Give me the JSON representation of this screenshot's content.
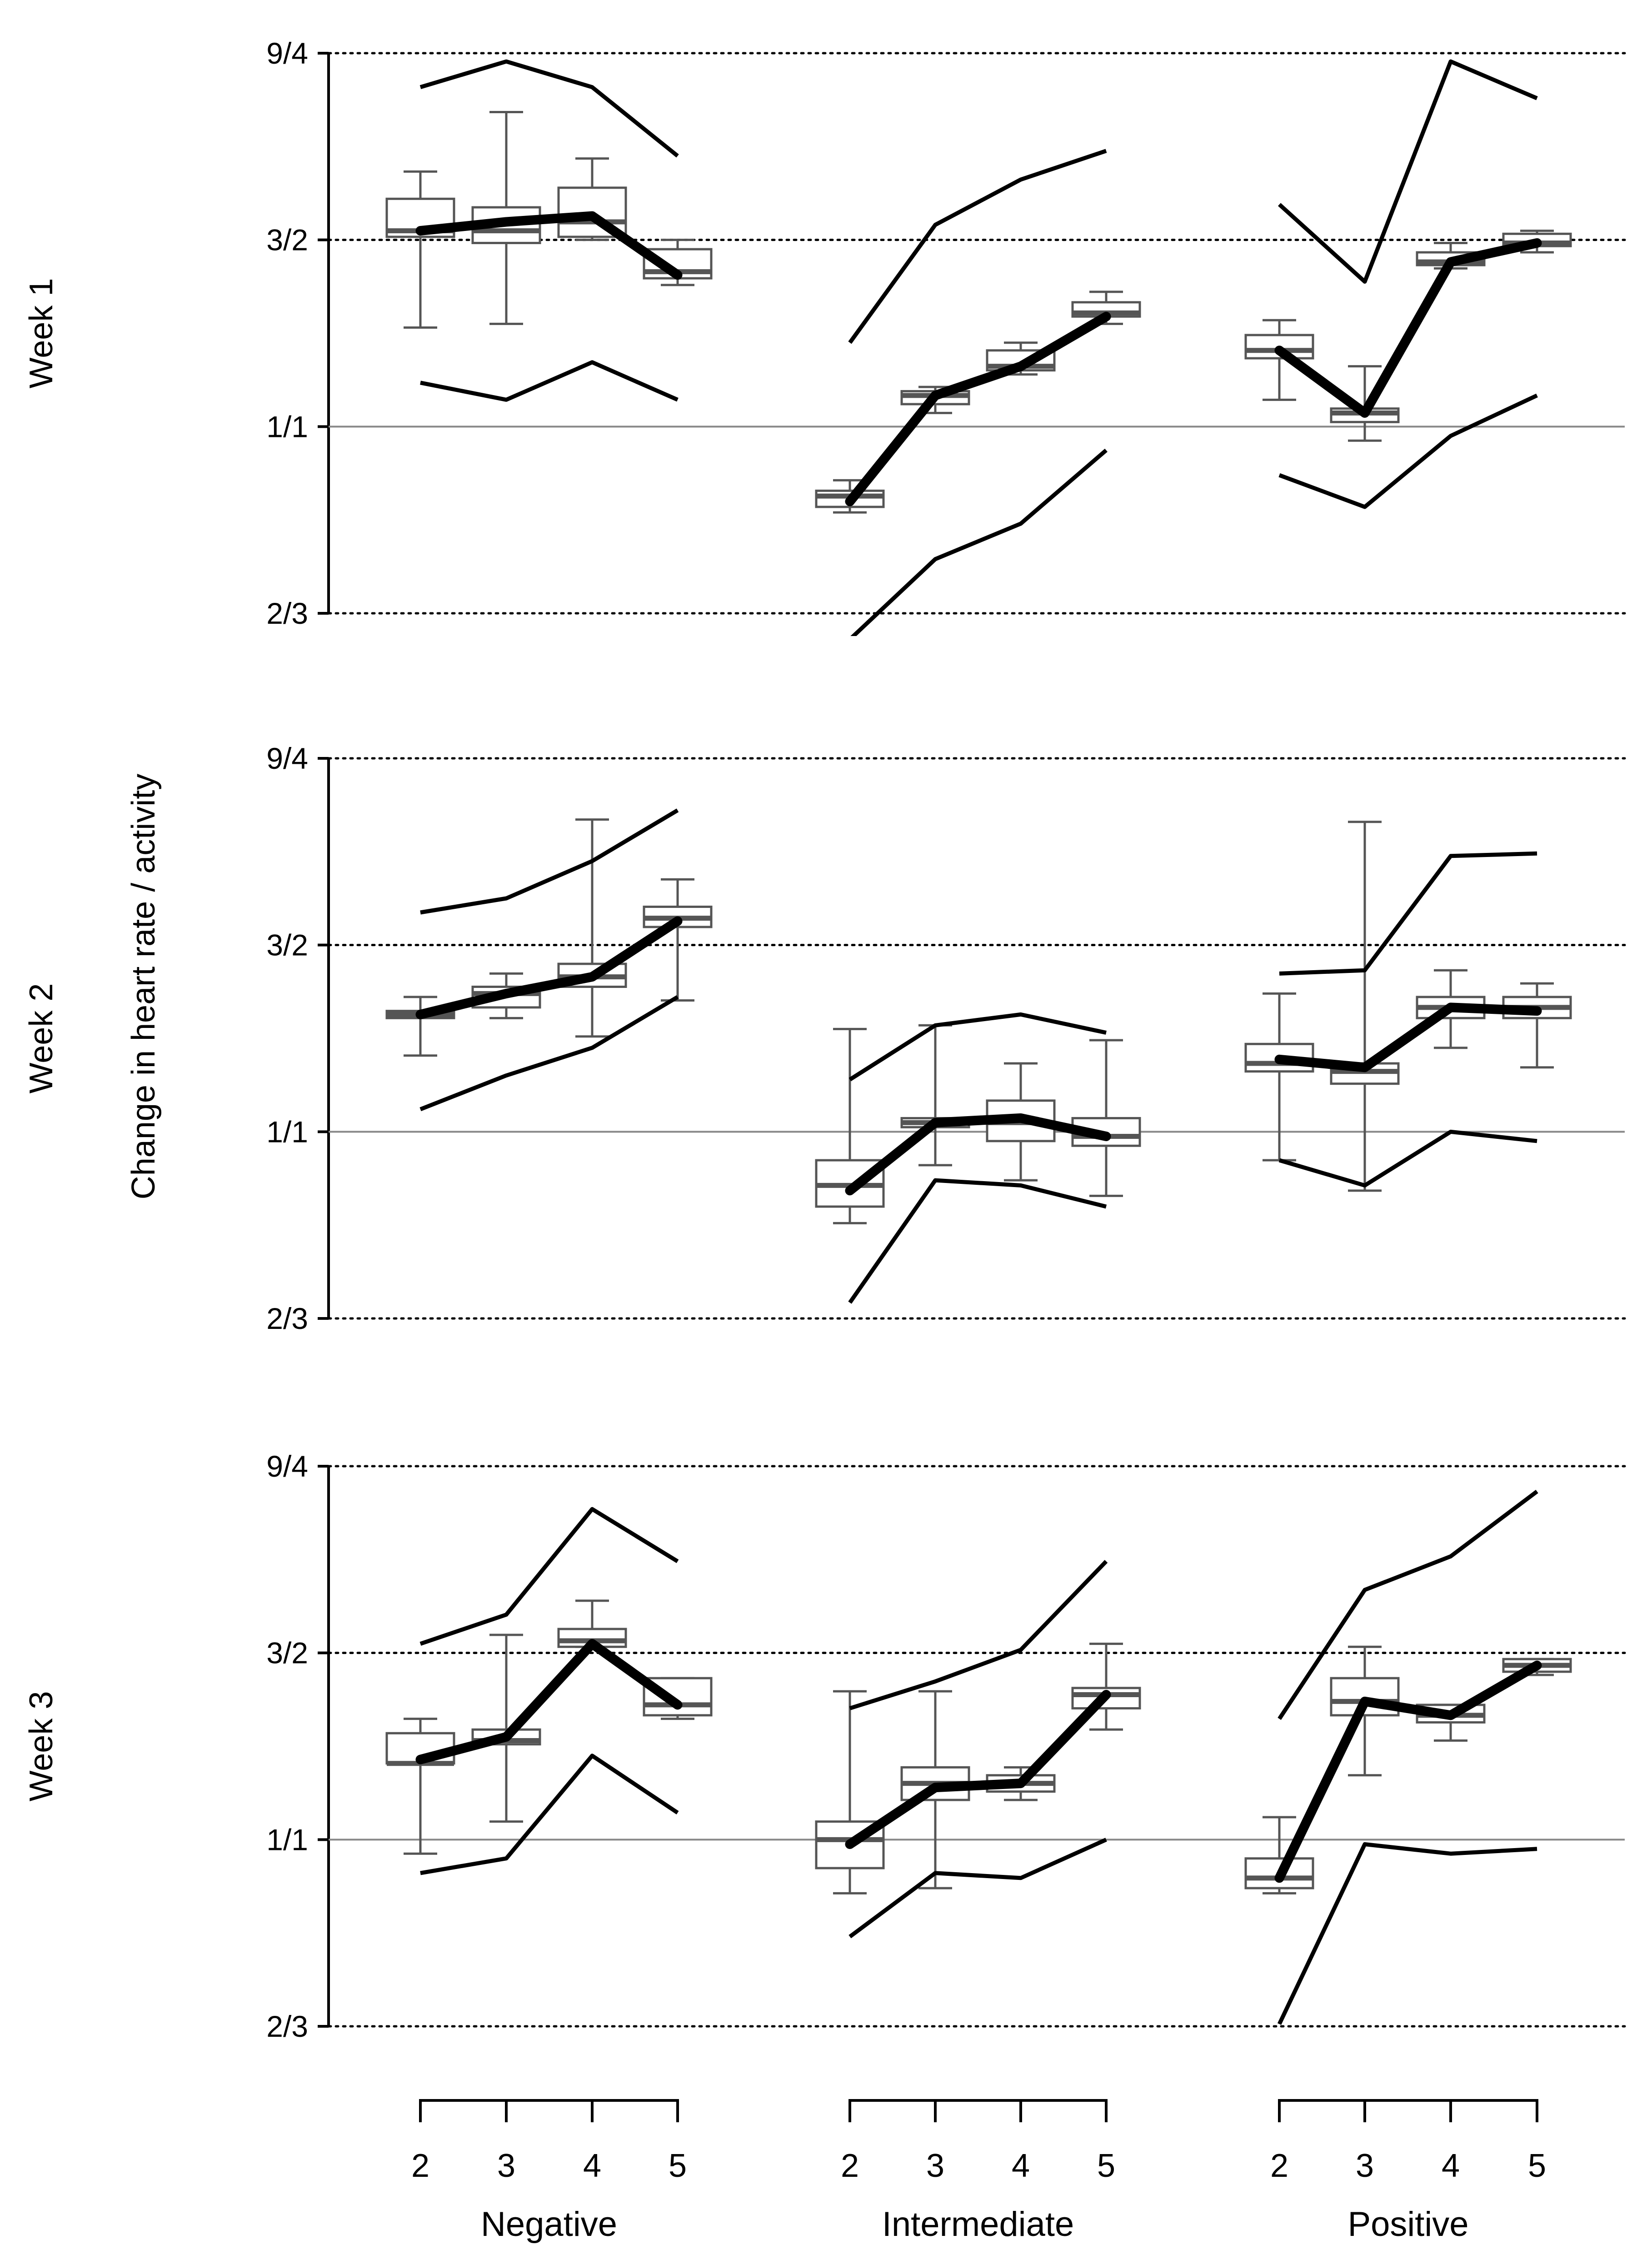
{
  "chart_data": {
    "type": "boxplot-with-lines",
    "ylabel": "Change in heart rate / activity",
    "yscale": "log",
    "yticks": [
      {
        "label": "9/4",
        "value": 2.25,
        "style": "dotted"
      },
      {
        "label": "3/2",
        "value": 1.5,
        "style": "dotted"
      },
      {
        "label": "1/1",
        "value": 1.0,
        "style": "solid"
      },
      {
        "label": "2/3",
        "value": 0.6667,
        "style": "dotted"
      }
    ],
    "ylim": [
      0.6667,
      2.25
    ],
    "group_labels": [
      "Negative",
      "Intermediate",
      "Positive"
    ],
    "categories": [
      "2",
      "3",
      "4",
      "5"
    ],
    "rows": [
      {
        "label": "Week 1",
        "groups": [
          {
            "name": "Negative",
            "median_line": [
              1.53,
              1.56,
              1.58,
              1.39
            ],
            "upper_line": [
              2.09,
              2.21,
              2.09,
              1.8
            ],
            "lower_line": [
              1.1,
              1.06,
              1.15,
              1.06
            ],
            "boxes": [
              {
                "q1": 1.51,
                "median": 1.53,
                "q3": 1.64,
                "whisker_low": 1.24,
                "whisker_high": 1.74
              },
              {
                "q1": 1.49,
                "median": 1.53,
                "q3": 1.61,
                "whisker_low": 1.25,
                "whisker_high": 1.98
              },
              {
                "q1": 1.51,
                "median": 1.56,
                "q3": 1.68,
                "whisker_low": 1.5,
                "whisker_high": 1.79
              },
              {
                "q1": 1.38,
                "median": 1.4,
                "q3": 1.47,
                "whisker_low": 1.36,
                "whisker_high": 1.5
              }
            ]
          },
          {
            "name": "Intermediate",
            "median_line": [
              0.85,
              1.07,
              1.14,
              1.27
            ],
            "upper_line": [
              1.2,
              1.55,
              1.71,
              1.82
            ],
            "lower_line": [
              0.63,
              0.75,
              0.81,
              0.95
            ],
            "boxes": [
              {
                "q1": 0.84,
                "median": 0.86,
                "q3": 0.87,
                "whisker_low": 0.83,
                "whisker_high": 0.89
              },
              {
                "q1": 1.05,
                "median": 1.07,
                "q3": 1.08,
                "whisker_low": 1.03,
                "whisker_high": 1.09
              },
              {
                "q1": 1.13,
                "median": 1.14,
                "q3": 1.18,
                "whisker_low": 1.12,
                "whisker_high": 1.2
              },
              {
                "q1": 1.27,
                "median": 1.28,
                "q3": 1.31,
                "whisker_low": 1.25,
                "whisker_high": 1.34
              }
            ]
          },
          {
            "name": "Positive",
            "median_line": [
              1.18,
              1.03,
              1.43,
              1.49
            ],
            "upper_line": [
              1.62,
              1.37,
              2.21,
              2.04
            ],
            "lower_line": [
              0.9,
              0.84,
              0.98,
              1.07
            ],
            "boxes": [
              {
                "q1": 1.16,
                "median": 1.18,
                "q3": 1.22,
                "whisker_low": 1.06,
                "whisker_high": 1.26
              },
              {
                "q1": 1.01,
                "median": 1.03,
                "q3": 1.04,
                "whisker_low": 0.97,
                "whisker_high": 1.14
              },
              {
                "q1": 1.42,
                "median": 1.43,
                "q3": 1.46,
                "whisker_low": 1.41,
                "whisker_high": 1.49
              },
              {
                "q1": 1.48,
                "median": 1.49,
                "q3": 1.52,
                "whisker_low": 1.46,
                "whisker_high": 1.53
              }
            ]
          }
        ]
      },
      {
        "label": "Week 2",
        "groups": [
          {
            "name": "Negative",
            "median_line": [
              1.29,
              1.35,
              1.4,
              1.58
            ],
            "upper_line": [
              1.61,
              1.66,
              1.8,
              2.01
            ],
            "lower_line": [
              1.05,
              1.13,
              1.2,
              1.34
            ],
            "boxes": [
              {
                "q1": 1.28,
                "median": 1.29,
                "q3": 1.3,
                "whisker_low": 1.18,
                "whisker_high": 1.34
              },
              {
                "q1": 1.31,
                "median": 1.35,
                "q3": 1.37,
                "whisker_low": 1.28,
                "whisker_high": 1.41
              },
              {
                "q1": 1.37,
                "median": 1.4,
                "q3": 1.44,
                "whisker_low": 1.23,
                "whisker_high": 1.97
              },
              {
                "q1": 1.56,
                "median": 1.59,
                "q3": 1.63,
                "whisker_low": 1.33,
                "whisker_high": 1.73
              }
            ]
          },
          {
            "name": "Intermediate",
            "median_line": [
              0.88,
              1.02,
              1.03,
              0.99
            ],
            "upper_line": [
              1.12,
              1.26,
              1.29,
              1.24
            ],
            "lower_line": [
              0.69,
              0.9,
              0.89,
              0.85
            ],
            "boxes": [
              {
                "q1": 0.85,
                "median": 0.89,
                "q3": 0.94,
                "whisker_low": 0.82,
                "whisker_high": 1.25
              },
              {
                "q1": 1.01,
                "median": 1.02,
                "q3": 1.03,
                "whisker_low": 0.93,
                "whisker_high": 1.26
              },
              {
                "q1": 0.98,
                "median": 1.02,
                "q3": 1.07,
                "whisker_low": 0.9,
                "whisker_high": 1.16
              },
              {
                "q1": 0.97,
                "median": 0.99,
                "q3": 1.03,
                "whisker_low": 0.87,
                "whisker_high": 1.22
              }
            ]
          },
          {
            "name": "Positive",
            "median_line": [
              1.17,
              1.15,
              1.31,
              1.3
            ],
            "upper_line": [
              1.41,
              1.42,
              1.82,
              1.83
            ],
            "lower_line": [
              0.94,
              0.89,
              1.0,
              0.98
            ],
            "boxes": [
              {
                "q1": 1.14,
                "median": 1.16,
                "q3": 1.21,
                "whisker_low": 0.94,
                "whisker_high": 1.35
              },
              {
                "q1": 1.11,
                "median": 1.14,
                "q3": 1.16,
                "whisker_low": 0.88,
                "whisker_high": 1.96
              },
              {
                "q1": 1.28,
                "median": 1.31,
                "q3": 1.34,
                "whisker_low": 1.2,
                "whisker_high": 1.42
              },
              {
                "q1": 1.28,
                "median": 1.31,
                "q3": 1.34,
                "whisker_low": 1.15,
                "whisker_high": 1.38
              }
            ]
          }
        ]
      },
      {
        "label": "Week 3",
        "groups": [
          {
            "name": "Negative",
            "median_line": [
              1.19,
              1.25,
              1.53,
              1.34
            ],
            "upper_line": [
              1.53,
              1.63,
              2.05,
              1.83
            ],
            "lower_line": [
              0.93,
              0.96,
              1.2,
              1.06
            ],
            "boxes": [
              {
                "q1": 1.18,
                "median": 1.18,
                "q3": 1.26,
                "whisker_low": 0.97,
                "whisker_high": 1.3
              },
              {
                "q1": 1.23,
                "median": 1.24,
                "q3": 1.27,
                "whisker_low": 1.04,
                "whisker_high": 1.56
              },
              {
                "q1": 1.52,
                "median": 1.54,
                "q3": 1.58,
                "whisker_low": 1.52,
                "whisker_high": 1.68
              },
              {
                "q1": 1.31,
                "median": 1.34,
                "q3": 1.42,
                "whisker_low": 1.3,
                "whisker_high": 1.42
              }
            ]
          },
          {
            "name": "Intermediate",
            "median_line": [
              0.99,
              1.12,
              1.13,
              1.37
            ],
            "upper_line": [
              1.33,
              1.41,
              1.51,
              1.83
            ],
            "lower_line": [
              0.81,
              0.93,
              0.92,
              1.0
            ],
            "boxes": [
              {
                "q1": 0.94,
                "median": 1.0,
                "q3": 1.04,
                "whisker_low": 0.89,
                "whisker_high": 1.38
              },
              {
                "q1": 1.09,
                "median": 1.13,
                "q3": 1.17,
                "whisker_low": 0.9,
                "whisker_high": 1.38
              },
              {
                "q1": 1.11,
                "median": 1.13,
                "q3": 1.15,
                "whisker_low": 1.09,
                "whisker_high": 1.17
              },
              {
                "q1": 1.33,
                "median": 1.37,
                "q3": 1.39,
                "whisker_low": 1.27,
                "whisker_high": 1.53
              }
            ]
          },
          {
            "name": "Positive",
            "median_line": [
              0.92,
              1.35,
              1.31,
              1.46
            ],
            "upper_line": [
              1.3,
              1.72,
              1.85,
              2.13
            ],
            "lower_line": [
              0.67,
              0.99,
              0.97,
              0.98
            ],
            "boxes": [
              {
                "q1": 0.9,
                "median": 0.92,
                "q3": 0.96,
                "whisker_low": 0.89,
                "whisker_high": 1.05
              },
              {
                "q1": 1.31,
                "median": 1.35,
                "q3": 1.42,
                "whisker_low": 1.15,
                "whisker_high": 1.52
              },
              {
                "q1": 1.29,
                "median": 1.31,
                "q3": 1.34,
                "whisker_low": 1.24,
                "whisker_high": 1.34
              },
              {
                "q1": 1.44,
                "median": 1.46,
                "q3": 1.48,
                "whisker_low": 1.43,
                "whisker_high": 1.48
              }
            ]
          }
        ]
      }
    ]
  }
}
